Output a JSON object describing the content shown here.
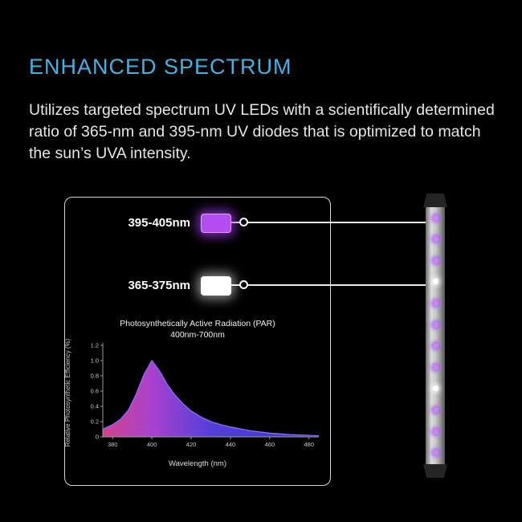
{
  "page": {
    "title": "ENHANCED SPECTRUM",
    "description": "Utilizes targeted spectrum UV LEDs with a scientifically determined ratio of 365-nm and 395-nm UV diodes that is optimized to match the sun’s UVA intensity.",
    "accent_color": "#45b0e6"
  },
  "diagram": {
    "leds": [
      {
        "label": "395-405nm",
        "swatch_color": "#b44df0",
        "glow_color": "#a03cf0"
      },
      {
        "label": "365-375nm",
        "swatch_color": "#ffffff",
        "glow_color": "#ffffff"
      }
    ]
  },
  "led_bar": {
    "dots": [
      "purple",
      "purple",
      "purple",
      "white",
      "purple",
      "purple",
      "purple",
      "purple",
      "white",
      "purple",
      "purple",
      "purple"
    ],
    "purple_color": "#cb85f7",
    "white_color": "#ffffff"
  },
  "chart_data": {
    "type": "area",
    "title": "Photosynthetically Active Radiation (PAR)",
    "subtitle": "400nm-700nm",
    "xlabel": "Wavelength (nm)",
    "ylabel": "Relative Photosynthetic Efficiency (%)",
    "xlim": [
      375,
      485
    ],
    "ylim": [
      0,
      1.2
    ],
    "xticks": [
      380,
      400,
      420,
      440,
      460,
      480
    ],
    "yticks": [
      0,
      0.2,
      0.4,
      0.6,
      0.8,
      1.0,
      1.2
    ],
    "x": [
      375,
      380,
      384,
      388,
      392,
      396,
      400,
      404,
      408,
      412,
      416,
      420,
      425,
      430,
      435,
      440,
      450,
      460,
      470,
      480,
      485
    ],
    "y": [
      0.1,
      0.16,
      0.23,
      0.35,
      0.56,
      0.82,
      1.0,
      0.86,
      0.68,
      0.54,
      0.43,
      0.34,
      0.26,
      0.2,
      0.16,
      0.13,
      0.08,
      0.05,
      0.03,
      0.02,
      0.015
    ],
    "fill_gradient": [
      "#d94590",
      "#b244d6",
      "#5742e2",
      "#3c38cf"
    ],
    "line_color": "#8a6cff",
    "axis_color": "#9a9a9a",
    "tick_label_color": "#c8c8c8",
    "grid": false,
    "legend": false
  }
}
